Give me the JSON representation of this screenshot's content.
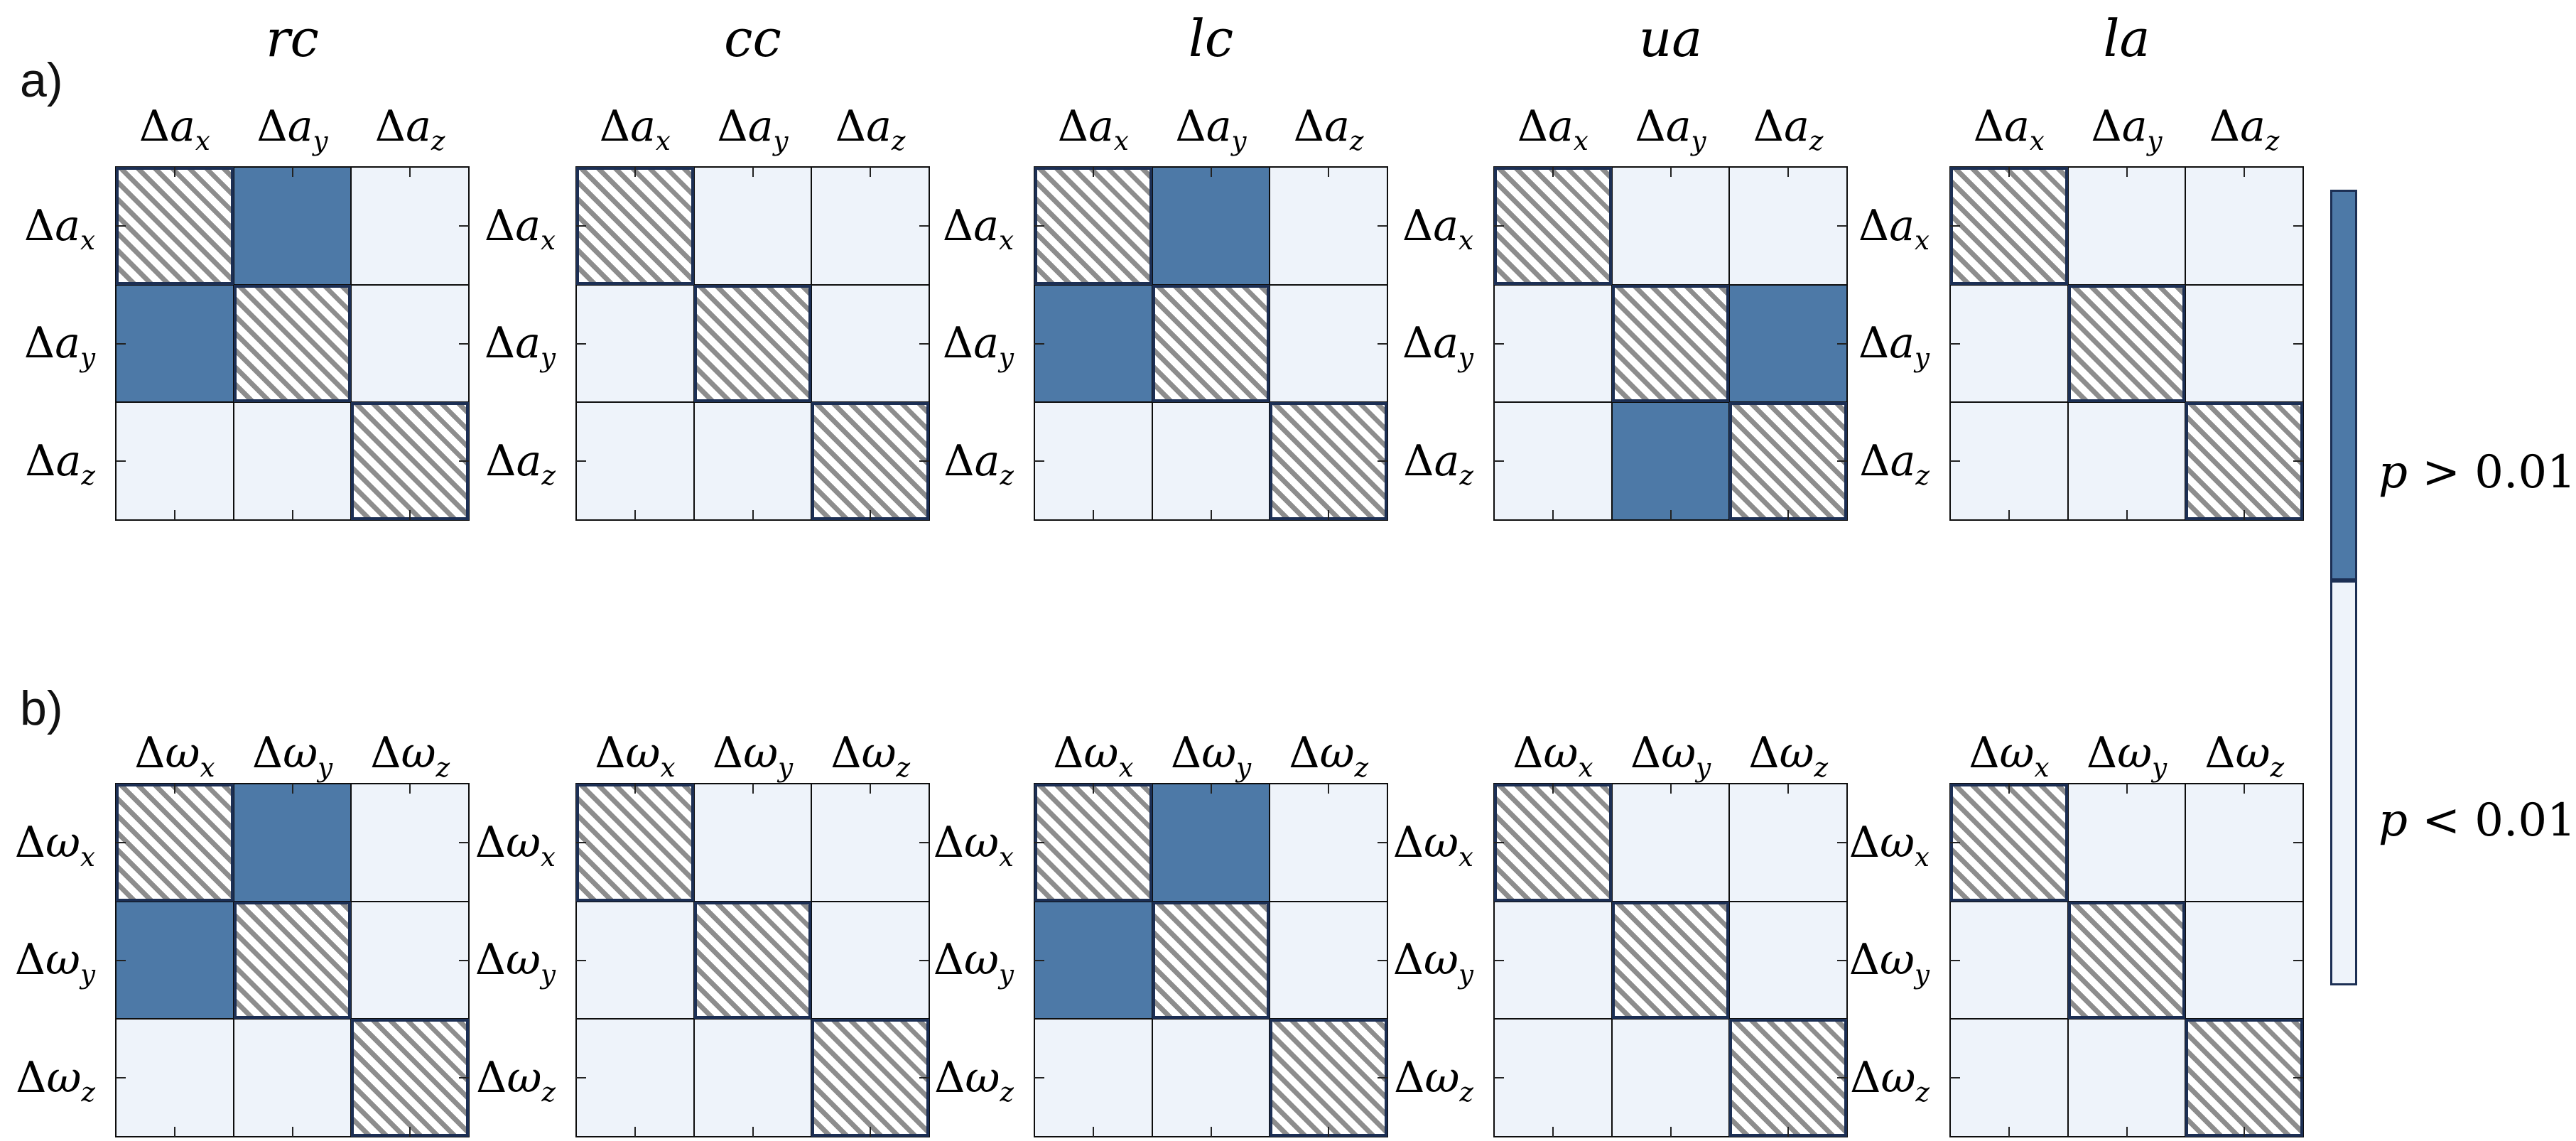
{
  "figure": {
    "panel_a_label": "a)",
    "panel_b_label": "b)"
  },
  "colors": {
    "p_greater_dark": "#4d79a7",
    "p_less_light": "#eef3fa",
    "hatch_gray": "#8d8d8d",
    "hatch_border_navy": "#1c2f54",
    "grid_line": "#0d0d0d"
  },
  "chart_data": {
    "type": "heatmap",
    "description": "Pairwise significance matrices of accelerometer (a) and gyroscope (b) axis differences for five sensor placements; diagonal cells hatched, off-diagonal cells colored by p-value.",
    "legend": {
      "position": "right",
      "entries": [
        {
          "label": "p > 0.01",
          "color": "#4d79a7"
        },
        {
          "label": "p < 0.01",
          "color": "#eef3fa"
        }
      ]
    },
    "condition_titles": [
      "rc",
      "cc",
      "lc",
      "ua",
      "la"
    ],
    "rows": [
      {
        "panel_label": "a)",
        "axis_labels": [
          {
            "prefix": "Δ",
            "base": "a",
            "sub": "x"
          },
          {
            "prefix": "Δ",
            "base": "a",
            "sub": "y"
          },
          {
            "prefix": "Δ",
            "base": "a",
            "sub": "z"
          }
        ],
        "matrices": [
          {
            "title": "rc",
            "grid": [
              [
                "diag",
                "p>0.01",
                "p<0.01"
              ],
              [
                "p>0.01",
                "diag",
                "p<0.01"
              ],
              [
                "p<0.01",
                "p<0.01",
                "diag"
              ]
            ]
          },
          {
            "title": "cc",
            "grid": [
              [
                "diag",
                "p<0.01",
                "p<0.01"
              ],
              [
                "p<0.01",
                "diag",
                "p<0.01"
              ],
              [
                "p<0.01",
                "p<0.01",
                "diag"
              ]
            ]
          },
          {
            "title": "lc",
            "grid": [
              [
                "diag",
                "p>0.01",
                "p<0.01"
              ],
              [
                "p>0.01",
                "diag",
                "p<0.01"
              ],
              [
                "p<0.01",
                "p<0.01",
                "diag"
              ]
            ]
          },
          {
            "title": "ua",
            "grid": [
              [
                "diag",
                "p<0.01",
                "p<0.01"
              ],
              [
                "p<0.01",
                "diag",
                "p>0.01"
              ],
              [
                "p<0.01",
                "p>0.01",
                "diag"
              ]
            ]
          },
          {
            "title": "la",
            "grid": [
              [
                "diag",
                "p<0.01",
                "p<0.01"
              ],
              [
                "p<0.01",
                "diag",
                "p<0.01"
              ],
              [
                "p<0.01",
                "p<0.01",
                "diag"
              ]
            ]
          }
        ]
      },
      {
        "panel_label": "b)",
        "axis_labels": [
          {
            "prefix": "Δ",
            "base": "ω",
            "sub": "x"
          },
          {
            "prefix": "Δ",
            "base": "ω",
            "sub": "y"
          },
          {
            "prefix": "Δ",
            "base": "ω",
            "sub": "z"
          }
        ],
        "matrices": [
          {
            "title": "rc",
            "grid": [
              [
                "diag",
                "p>0.01",
                "p<0.01"
              ],
              [
                "p>0.01",
                "diag",
                "p<0.01"
              ],
              [
                "p<0.01",
                "p<0.01",
                "diag"
              ]
            ]
          },
          {
            "title": "cc",
            "grid": [
              [
                "diag",
                "p<0.01",
                "p<0.01"
              ],
              [
                "p<0.01",
                "diag",
                "p<0.01"
              ],
              [
                "p<0.01",
                "p<0.01",
                "diag"
              ]
            ]
          },
          {
            "title": "lc",
            "grid": [
              [
                "diag",
                "p>0.01",
                "p<0.01"
              ],
              [
                "p>0.01",
                "diag",
                "p<0.01"
              ],
              [
                "p<0.01",
                "p<0.01",
                "diag"
              ]
            ]
          },
          {
            "title": "ua",
            "grid": [
              [
                "diag",
                "p<0.01",
                "p<0.01"
              ],
              [
                "p<0.01",
                "diag",
                "p<0.01"
              ],
              [
                "p<0.01",
                "p<0.01",
                "diag"
              ]
            ]
          },
          {
            "title": "la",
            "grid": [
              [
                "diag",
                "p<0.01",
                "p<0.01"
              ],
              [
                "p<0.01",
                "diag",
                "p<0.01"
              ],
              [
                "p<0.01",
                "p<0.01",
                "diag"
              ]
            ]
          }
        ]
      }
    ]
  }
}
